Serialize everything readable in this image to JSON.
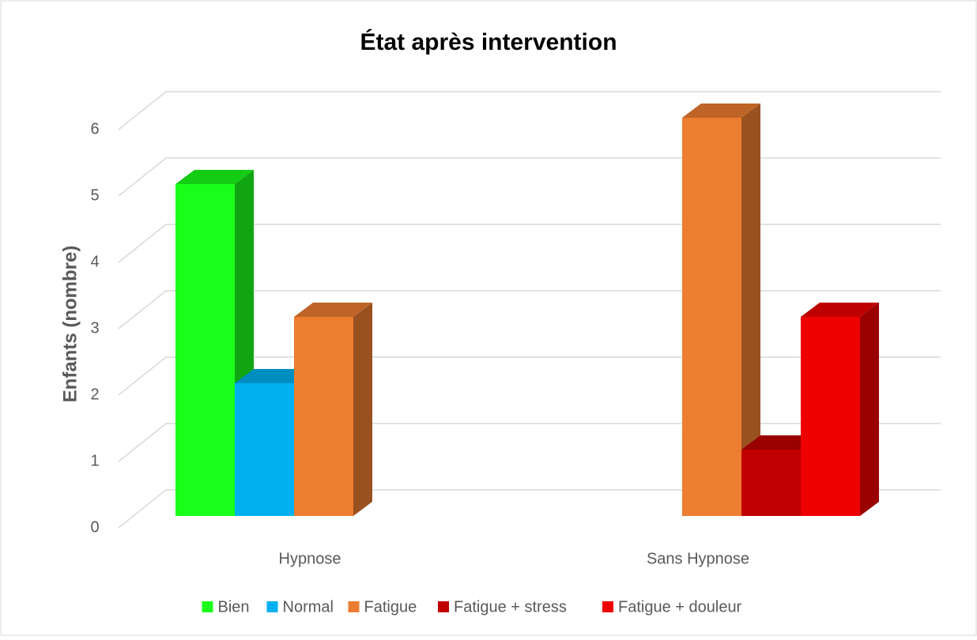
{
  "chart_data": {
    "type": "bar3d",
    "title": "État après intervention",
    "y_label": "Enfants (nombre)",
    "categories": [
      "Hypnose",
      "Sans Hypnose"
    ],
    "series": [
      {
        "name": "Bien",
        "color": "#1aff1a",
        "values": [
          5,
          null
        ]
      },
      {
        "name": "Normal",
        "color": "#00b0f0",
        "values": [
          2,
          null
        ]
      },
      {
        "name": "Fatigue",
        "color": "#ed7d31",
        "values": [
          3,
          6
        ]
      },
      {
        "name": "Fatigue + stress",
        "color": "#c00000",
        "values": [
          null,
          1
        ]
      },
      {
        "name": "Fatigue + douleur",
        "color": "#ee0000",
        "values": [
          null,
          3
        ]
      }
    ],
    "ylim": [
      0,
      6
    ],
    "yticks": [
      0,
      1,
      2,
      3,
      4,
      5,
      6
    ],
    "grid": true,
    "legend": "bottom"
  }
}
